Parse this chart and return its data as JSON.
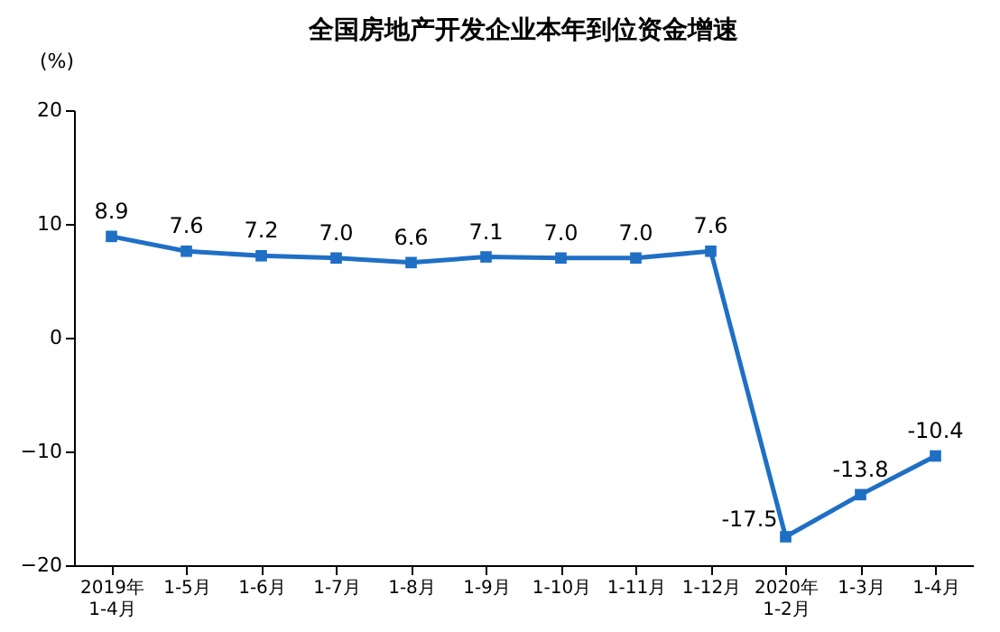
{
  "chart_data": {
    "type": "line",
    "title": "全国房地产开发企业本年到位资金增速",
    "ylabel": "(%)",
    "categories": [
      "2019年\n1-4月",
      "1-5月",
      "1-6月",
      "1-7月",
      "1-8月",
      "1-9月",
      "1-10月",
      "1-11月",
      "1-12月",
      "2020年\n1-2月",
      "1-3月",
      "1-4月"
    ],
    "series": [
      {
        "color": "#1f6fc5",
        "values": [
          8.9,
          7.6,
          7.2,
          7.0,
          6.6,
          7.1,
          7.0,
          7.0,
          7.6,
          -17.5,
          -13.8,
          -10.4
        ],
        "value_labels": [
          "8.9",
          "7.6",
          "7.2",
          "7.0",
          "6.6",
          "7.1",
          "7.0",
          "7.0",
          "7.6",
          "-17.5",
          "-13.8",
          "-10.4"
        ]
      }
    ],
    "ylim": [
      -20,
      20
    ],
    "yticks": [
      -20,
      -10,
      0,
      10,
      20
    ],
    "grid": false,
    "marker": "square"
  }
}
